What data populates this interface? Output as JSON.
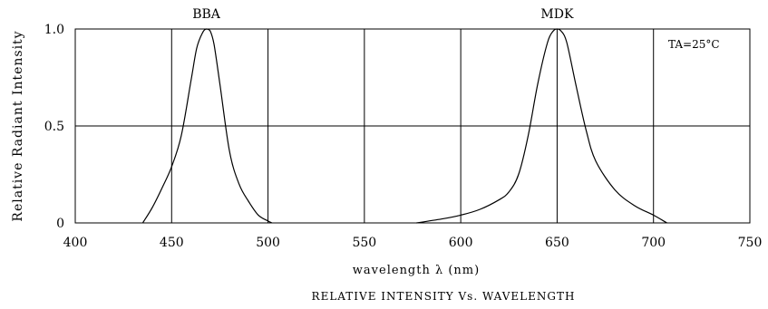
{
  "chart_data": {
    "type": "line",
    "title": "RELATIVE INTENSITY Vs. WAVELENGTH",
    "xlabel": "wavelength λ (nm)",
    "ylabel": "Relative Radiant Intensity",
    "xlim": [
      400,
      750
    ],
    "ylim": [
      0,
      1.0
    ],
    "x_ticks": [
      400,
      450,
      500,
      550,
      600,
      650,
      700,
      750
    ],
    "x_tick_labels": [
      "400",
      "450",
      "500",
      "550",
      "600",
      "650",
      "700",
      "750"
    ],
    "y_ticks": [
      0,
      0.5,
      1.0
    ],
    "y_tick_labels": [
      "0",
      "0.5",
      "1.0"
    ],
    "grid": true,
    "annotation": "TA=25°C",
    "series": [
      {
        "name": "BBA",
        "x": [
          435,
          440,
          445,
          450,
          455,
          460,
          463,
          466,
          468,
          470,
          472,
          475,
          480,
          485,
          490,
          495,
          500,
          502
        ],
        "y": [
          0.0,
          0.08,
          0.18,
          0.29,
          0.45,
          0.73,
          0.9,
          0.98,
          1.0,
          0.99,
          0.92,
          0.72,
          0.37,
          0.2,
          0.11,
          0.04,
          0.01,
          0.0
        ]
      },
      {
        "name": "MDK",
        "x": [
          577,
          590,
          600,
          610,
          620,
          625,
          630,
          635,
          640,
          645,
          648,
          650,
          652,
          655,
          660,
          665,
          670,
          680,
          690,
          700,
          707
        ],
        "y": [
          0.0,
          0.02,
          0.04,
          0.07,
          0.12,
          0.16,
          0.25,
          0.45,
          0.72,
          0.93,
          0.99,
          1.0,
          0.99,
          0.93,
          0.7,
          0.48,
          0.32,
          0.17,
          0.09,
          0.04,
          0.0
        ]
      }
    ]
  }
}
